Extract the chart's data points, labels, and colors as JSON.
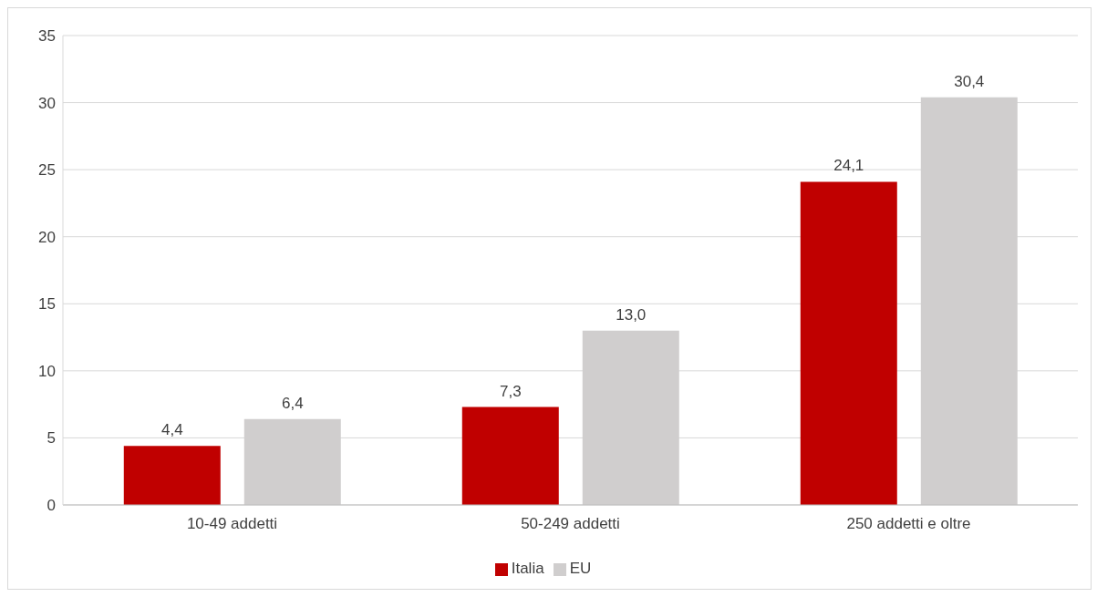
{
  "chart_data": {
    "type": "bar",
    "categories": [
      "10-49 addetti",
      "50-249 addetti",
      "250 addetti e oltre"
    ],
    "series": [
      {
        "name": "Italia",
        "color": "#c00000",
        "values": [
          4.4,
          7.3,
          24.1
        ],
        "value_labels": [
          "4,4",
          "7,3",
          "24,1"
        ]
      },
      {
        "name": "EU",
        "color": "#d0cece",
        "values": [
          6.4,
          13.0,
          30.4
        ],
        "value_labels": [
          "6,4",
          "13,0",
          "30,4"
        ]
      }
    ],
    "ylim": [
      0,
      35
    ],
    "yticks": [
      0,
      5,
      10,
      15,
      20,
      25,
      30,
      35
    ],
    "grid": "y",
    "legend": "bottom"
  }
}
